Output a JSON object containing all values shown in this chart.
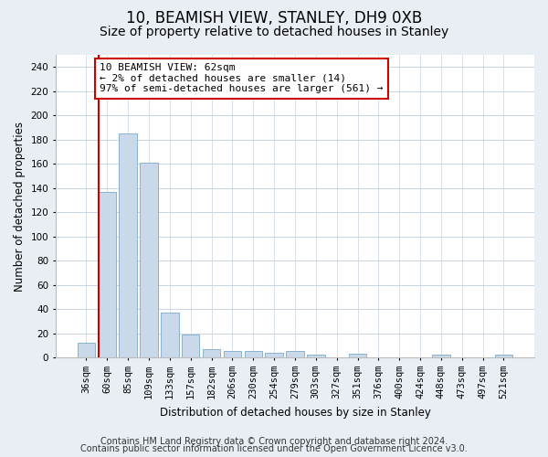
{
  "title_line1": "10, BEAMISH VIEW, STANLEY, DH9 0XB",
  "title_line2": "Size of property relative to detached houses in Stanley",
  "xlabel": "Distribution of detached houses by size in Stanley",
  "ylabel": "Number of detached properties",
  "categories": [
    "36sqm",
    "60sqm",
    "85sqm",
    "109sqm",
    "133sqm",
    "157sqm",
    "182sqm",
    "206sqm",
    "230sqm",
    "254sqm",
    "279sqm",
    "303sqm",
    "327sqm",
    "351sqm",
    "376sqm",
    "400sqm",
    "424sqm",
    "448sqm",
    "473sqm",
    "497sqm",
    "521sqm"
  ],
  "values": [
    12,
    137,
    185,
    161,
    37,
    19,
    7,
    5,
    5,
    4,
    5,
    2,
    0,
    3,
    0,
    0,
    0,
    2,
    0,
    0,
    2
  ],
  "bar_color": "#c9d9ea",
  "bar_edge_color": "#7aaac8",
  "highlight_line_color": "#cc0000",
  "highlight_bar_index": 1,
  "ylim": [
    0,
    250
  ],
  "yticks": [
    0,
    20,
    40,
    60,
    80,
    100,
    120,
    140,
    160,
    180,
    200,
    220,
    240
  ],
  "annotation_line1": "10 BEAMISH VIEW: 62sqm",
  "annotation_line2": "← 2% of detached houses are smaller (14)",
  "annotation_line3": "97% of semi-detached houses are larger (561) →",
  "annotation_box_color": "#ffffff",
  "annotation_box_edge_color": "#cc0000",
  "footer_line1": "Contains HM Land Registry data © Crown copyright and database right 2024.",
  "footer_line2": "Contains public sector information licensed under the Open Government Licence v3.0.",
  "background_color": "#e8eef4",
  "plot_background_color": "#ffffff",
  "grid_color": "#c8d4e0",
  "title_fontsize": 12,
  "subtitle_fontsize": 10,
  "axis_label_fontsize": 8.5,
  "tick_fontsize": 7.5,
  "annotation_fontsize": 8,
  "footer_fontsize": 7
}
